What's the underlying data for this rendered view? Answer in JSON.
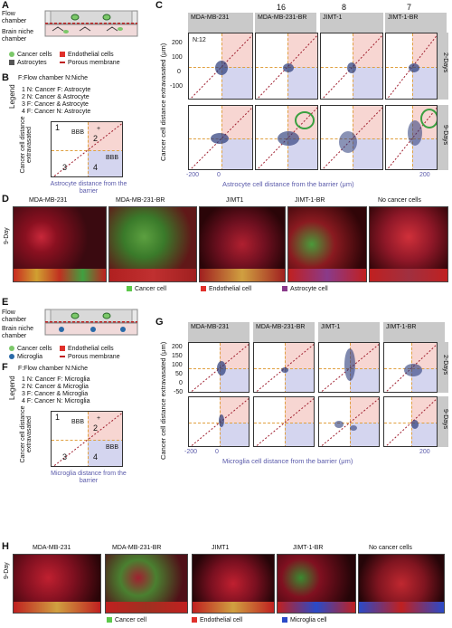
{
  "panel_labels": [
    "A",
    "B",
    "C",
    "D",
    "E",
    "F",
    "G",
    "H"
  ],
  "panelA": {
    "flow_chamber": "Flow chamber",
    "brain_niche": "Brain niche chamber",
    "legend_cancer": "Cancer cells",
    "legend_endo": "Endothelial cells",
    "legend_astro": "Astrocytes",
    "legend_membrane": "Porous membrane"
  },
  "panelB": {
    "header": "F:Flow chamber    N:Niche",
    "legend_title": "Legend",
    "items": [
      "1  N: Cancer F: Astrocyte",
      "2  N: Cancer & Astrocyte",
      "3  F: Cancer & Astrocyte",
      "4  F: Cancer N: Astrocyte"
    ],
    "ylabel": "Cancer cell distance extravasated",
    "xlabel": "Astrocyte distance from the barrier",
    "quad_nums": [
      "1",
      "2",
      "3",
      "4"
    ],
    "bbb": "BBB",
    "plus": "+"
  },
  "panelC": {
    "top_counts": [
      "16",
      "8",
      "7"
    ],
    "n_label": "N:12",
    "cols": [
      "MDA-MB-231",
      "MDA-MB-231-BR",
      "JIMT-1",
      "JIMT-1-BR"
    ],
    "rows": [
      "2-Days",
      "9-Days"
    ],
    "ylabel": "Cancer cell distance extravasated (μm)",
    "xlabel": "Astrocyte cell distance from the barrier (μm)",
    "yticks": [
      "200",
      "100",
      "0",
      "-100"
    ],
    "xticks": [
      "-200",
      "0",
      "200"
    ]
  },
  "panelD": {
    "cols": [
      "MDA-MB-231",
      "MDA-MB-231-BR",
      "JIMT1",
      "JIMT-1-BR",
      "No cancer cells"
    ],
    "row": "9-Day",
    "legend": [
      "Cancer cell",
      "Endothelial cell",
      "Astrocyte cell"
    ],
    "legend_colors": [
      "#5cc84a",
      "#e0302a",
      "#8a3a8a"
    ]
  },
  "panelE": {
    "flow_chamber": "Flow chamber",
    "brain_niche": "Brain niche chamber",
    "legend_cancer": "Cancer cells",
    "legend_endo": "Endothelial cells",
    "legend_micro": "Microglia",
    "legend_membrane": "Porous membrane"
  },
  "panelF": {
    "header": "F:Flow chamber    N:Niche",
    "legend_title": "Legend",
    "items": [
      "1  N: Cancer F: Microglia",
      "2  N: Cancer & Microglia",
      "3  F: Cancer & Microglia",
      "4  F: Cancer N: Microglia"
    ],
    "ylabel": "Cancer cell distance extravasated",
    "xlabel": "Microglia distance from the barrier",
    "quad_nums": [
      "1",
      "2",
      "3",
      "4"
    ],
    "bbb": "BBB",
    "plus": "+"
  },
  "panelG": {
    "cols": [
      "MDA-MB-231",
      "MDA-MB-231-BR",
      "JIMT-1",
      "JIMT-1-BR"
    ],
    "rows": [
      "2-Days",
      "9-Days"
    ],
    "ylabel": "Cancer cell distance extravasated (μm)",
    "xlabel": "Microglia cell distance from the barrier (μm)",
    "yticks": [
      "200",
      "150",
      "100",
      "50",
      "0",
      "-50"
    ],
    "xticks": [
      "-200",
      "0",
      "200"
    ]
  },
  "panelH": {
    "cols": [
      "MDA-MB-231",
      "MDA-MB-231-BR",
      "JIMT1",
      "JIMT-1-BR",
      "No cancer cells"
    ],
    "row": "9-Day",
    "legend": [
      "Cancer cell",
      "Endothelial cell",
      "Microglia cell"
    ],
    "legend_colors": [
      "#5cc84a",
      "#e0302a",
      "#2a4ac8"
    ]
  },
  "colors": {
    "pink": "#f7d6d2",
    "blue": "#d4d5ef",
    "orange_dash": "#e0a040",
    "diag": "#a02030",
    "circle": "#3aa040",
    "axis_blue": "#5a5aaa"
  }
}
